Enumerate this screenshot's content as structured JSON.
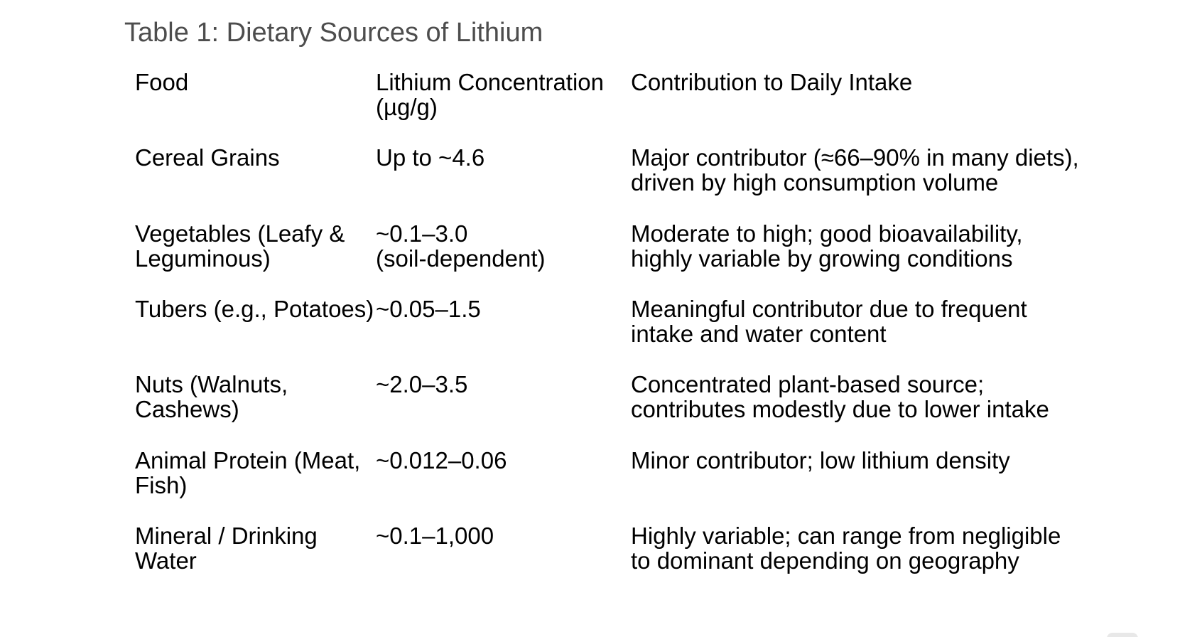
{
  "document": {
    "title": "Table 1: Dietary Sources of Lithium"
  },
  "table": {
    "headers": [
      "Food",
      "Lithium Concentration\n(µg/g)",
      "Contribution to Daily Intake"
    ],
    "rows": [
      {
        "food": "Cereal Grains",
        "concentration": "Up to ~4.6",
        "contribution": "Major contributor (≈66–90% in many diets),\ndriven by high consumption volume"
      },
      {
        "food": "Vegetables (Leafy &\nLeguminous)",
        "concentration": "~0.1–3.0\n(soil-dependent)",
        "contribution": "Moderate to high; good bioavailability,\nhighly variable by growing conditions"
      },
      {
        "food": "Tubers (e.g., Potatoes)",
        "concentration": "~0.05–1.5",
        "contribution": "Meaningful contributor due to frequent\nintake and water content"
      },
      {
        "food": "Nuts (Walnuts,\nCashews)",
        "concentration": "~2.0–3.5",
        "contribution": "Concentrated plant-based source;\ncontributes modestly due to lower intake"
      },
      {
        "food": "Animal Protein (Meat,\nFish)",
        "concentration": "~0.012–0.06",
        "contribution": "Minor contributor; low lithium density"
      },
      {
        "food": "Mineral / Drinking\nWater",
        "concentration": "~0.1–1,000",
        "contribution": "Highly variable; can range from negligible\nto dominant depending on geography"
      }
    ]
  },
  "chart_data": {
    "type": "table",
    "title": "Table 1: Dietary Sources of Lithium",
    "columns": [
      "Food",
      "Lithium Concentration (µg/g)",
      "Contribution to Daily Intake"
    ],
    "rows": [
      [
        "Cereal Grains",
        "Up to ~4.6",
        "Major contributor (≈66–90% in many diets), driven by high consumption volume"
      ],
      [
        "Vegetables (Leafy & Leguminous)",
        "~0.1–3.0 (soil-dependent)",
        "Moderate to high; good bioavailability, highly variable by growing conditions"
      ],
      [
        "Tubers (e.g., Potatoes)",
        "~0.05–1.5",
        "Meaningful contributor due to frequent intake and water content"
      ],
      [
        "Nuts (Walnuts, Cashews)",
        "~2.0–3.5",
        "Concentrated plant-based source; contributes modestly due to lower intake"
      ],
      [
        "Animal Protein (Meat, Fish)",
        "~0.012–0.06",
        "Minor contributor; low lithium density"
      ],
      [
        "Mineral / Drinking Water",
        "~0.1–1,000",
        "Highly variable; can range from negligible to dominant depending on geography"
      ]
    ]
  },
  "colors": {
    "title_text": "#4d4d4d",
    "body_text": "#000000",
    "background": "#ffffff",
    "corner_widget": "#e8e8e8"
  }
}
